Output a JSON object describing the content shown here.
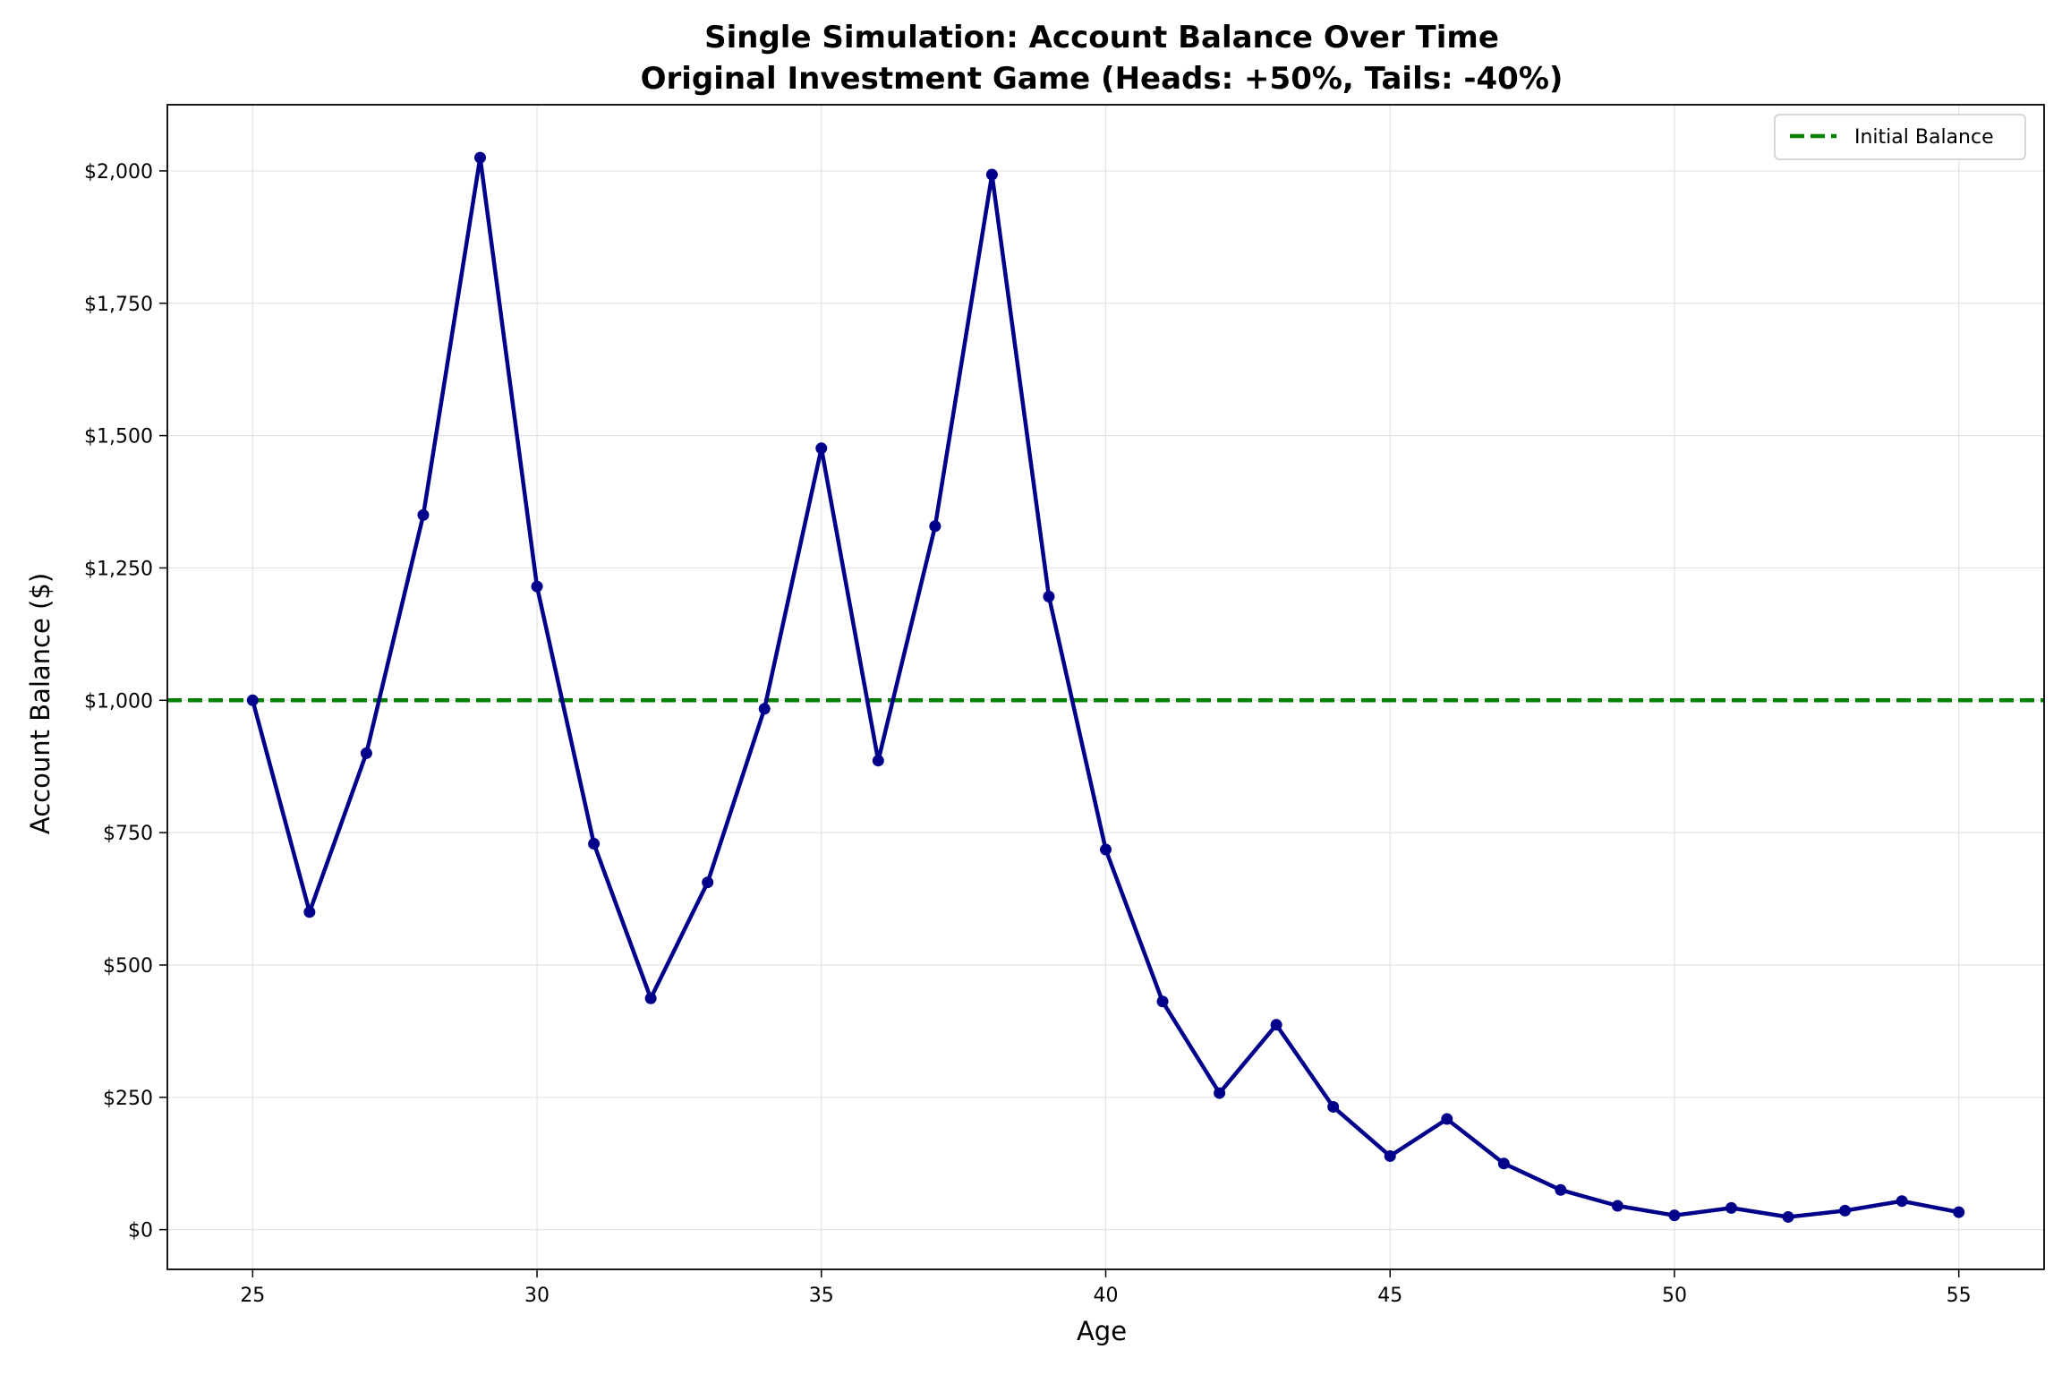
{
  "chart_data": {
    "type": "line",
    "title": "Single Simulation: Account Balance Over Time",
    "subtitle": "Original Investment Game (Heads: +50%, Tails: -40%)",
    "xlabel": "Age",
    "ylabel": "Account Balance ($)",
    "xlim": [
      23.5,
      56.5
    ],
    "ylim": [
      -75,
      2125
    ],
    "x_ticks": [
      25,
      30,
      35,
      40,
      45,
      50,
      55
    ],
    "y_ticks": [
      0,
      250,
      500,
      750,
      1000,
      1250,
      1500,
      1750,
      2000
    ],
    "y_tick_labels": [
      "$0",
      "$250",
      "$500",
      "$750",
      "$1,000",
      "$1,250",
      "$1,500",
      "$1,750",
      "$2,000"
    ],
    "grid": true,
    "legend_position": "top-right",
    "series": [
      {
        "color": "#00008b",
        "marker": "circle",
        "x": [
          25,
          26,
          27,
          28,
          29,
          30,
          31,
          32,
          33,
          34,
          35,
          36,
          37,
          38,
          39,
          40,
          41,
          42,
          43,
          44,
          45,
          46,
          47,
          48,
          49,
          50,
          51,
          52,
          53,
          54,
          55
        ],
        "y": [
          1000,
          600,
          900,
          1350,
          2025,
          1215,
          729,
          437,
          656,
          984,
          1476,
          886,
          1329,
          1993,
          1196,
          718,
          431,
          258,
          387,
          232,
          139,
          209,
          125,
          75,
          45,
          27,
          41,
          24,
          36,
          54,
          33
        ]
      }
    ],
    "reference_lines": [
      {
        "name": "Initial Balance",
        "y": 1000,
        "color": "#008000",
        "style": "dashed"
      }
    ]
  }
}
